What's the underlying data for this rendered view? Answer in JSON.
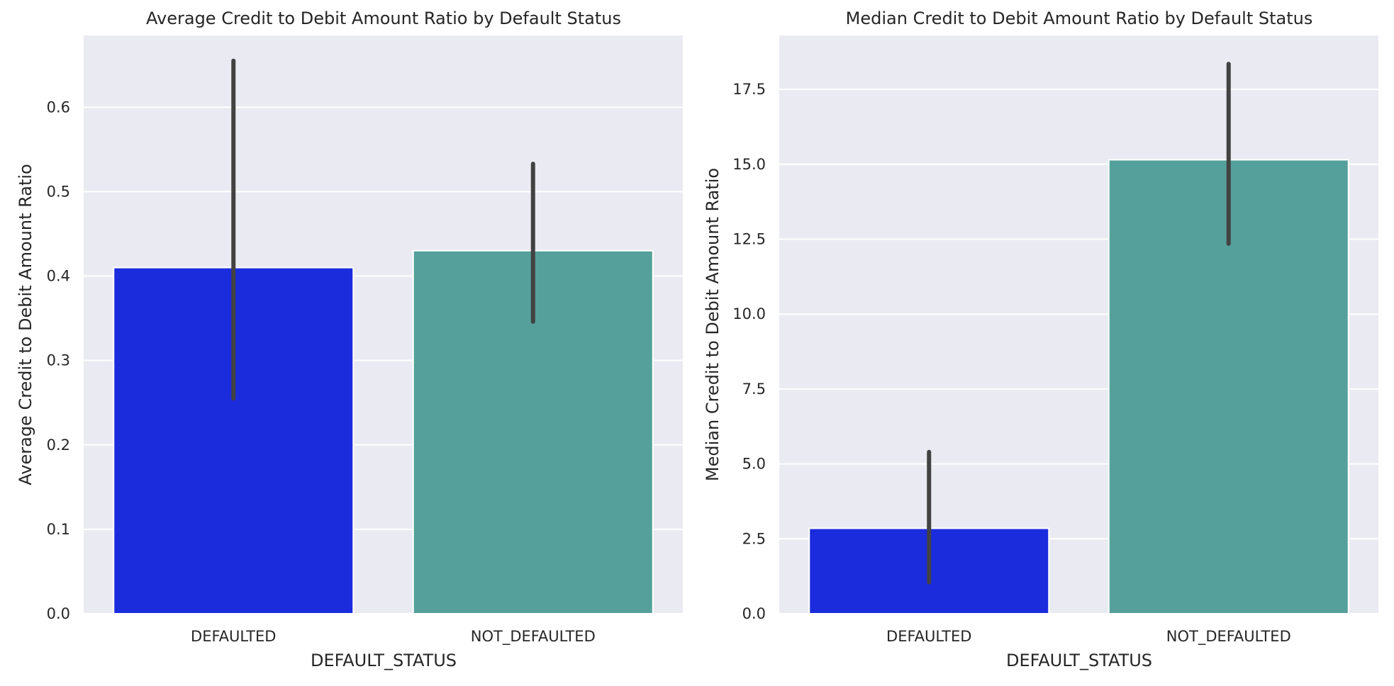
{
  "chart_data": [
    {
      "type": "bar",
      "title": "Average Credit to Debit Amount Ratio by Default Status",
      "xlabel": "DEFAULT_STATUS",
      "ylabel": "Average Credit to Debit Amount Ratio",
      "categories": [
        "DEFAULTED",
        "NOT_DEFAULTED"
      ],
      "values": [
        0.41,
        0.43
      ],
      "error_low": [
        0.255,
        0.346
      ],
      "error_high": [
        0.655,
        0.533
      ],
      "colors": [
        "#1b2cdd",
        "#55a09a"
      ],
      "ylim": [
        0,
        0.685
      ],
      "yticks": [
        0.0,
        0.1,
        0.2,
        0.3,
        0.4,
        0.5,
        0.6
      ],
      "ytick_labels": [
        "0.0",
        "0.1",
        "0.2",
        "0.3",
        "0.4",
        "0.5",
        "0.6"
      ],
      "grid": true
    },
    {
      "type": "bar",
      "title": "Median Credit to Debit Amount Ratio by Default Status",
      "xlabel": "DEFAULT_STATUS",
      "ylabel": "Median Credit to Debit Amount Ratio",
      "categories": [
        "DEFAULTED",
        "NOT_DEFAULTED"
      ],
      "values": [
        2.85,
        15.15
      ],
      "error_low": [
        1.05,
        12.35
      ],
      "error_high": [
        5.4,
        18.35
      ],
      "colors": [
        "#1b2cdd",
        "#55a09a"
      ],
      "ylim": [
        0,
        19.3
      ],
      "yticks": [
        0.0,
        2.5,
        5.0,
        7.5,
        10.0,
        12.5,
        15.0,
        17.5
      ],
      "ytick_labels": [
        "0.0",
        "2.5",
        "5.0",
        "7.5",
        "10.0",
        "12.5",
        "15.0",
        "17.5"
      ],
      "grid": true
    }
  ]
}
